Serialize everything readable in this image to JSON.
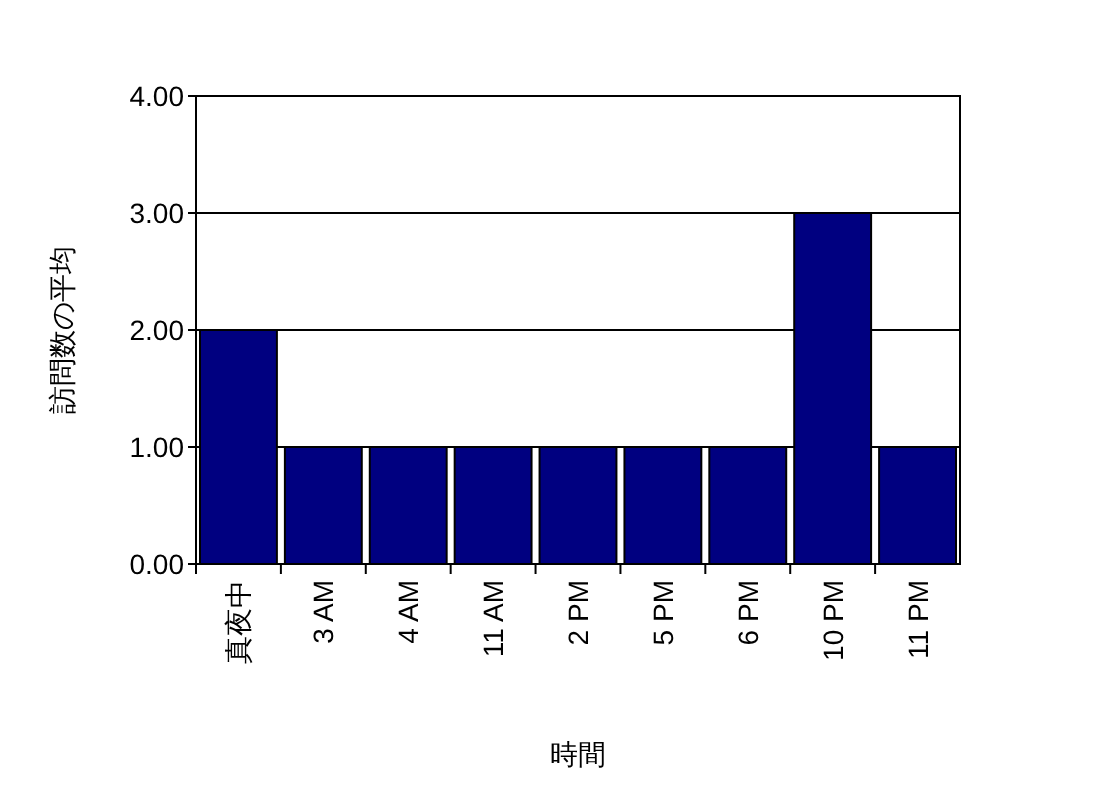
{
  "chart_data": {
    "type": "bar",
    "ylabel": "訪問数の平均",
    "xlabel": "時間",
    "categories": [
      "真夜中",
      "3 AM",
      "4 AM",
      "11 AM",
      "2 PM",
      "5 PM",
      "6 PM",
      "10 PM",
      "11 PM"
    ],
    "values": [
      2,
      1,
      1,
      1,
      1,
      1,
      1,
      3,
      1
    ],
    "color": "#000080",
    "ylim": [
      0,
      4
    ],
    "yticks": [
      {
        "value": 0,
        "label": "0.00"
      },
      {
        "value": 1,
        "label": "1.00"
      },
      {
        "value": 2,
        "label": "2.00"
      },
      {
        "value": 3,
        "label": "3.00"
      },
      {
        "value": 4,
        "label": "4.00"
      }
    ],
    "grid": "y"
  }
}
